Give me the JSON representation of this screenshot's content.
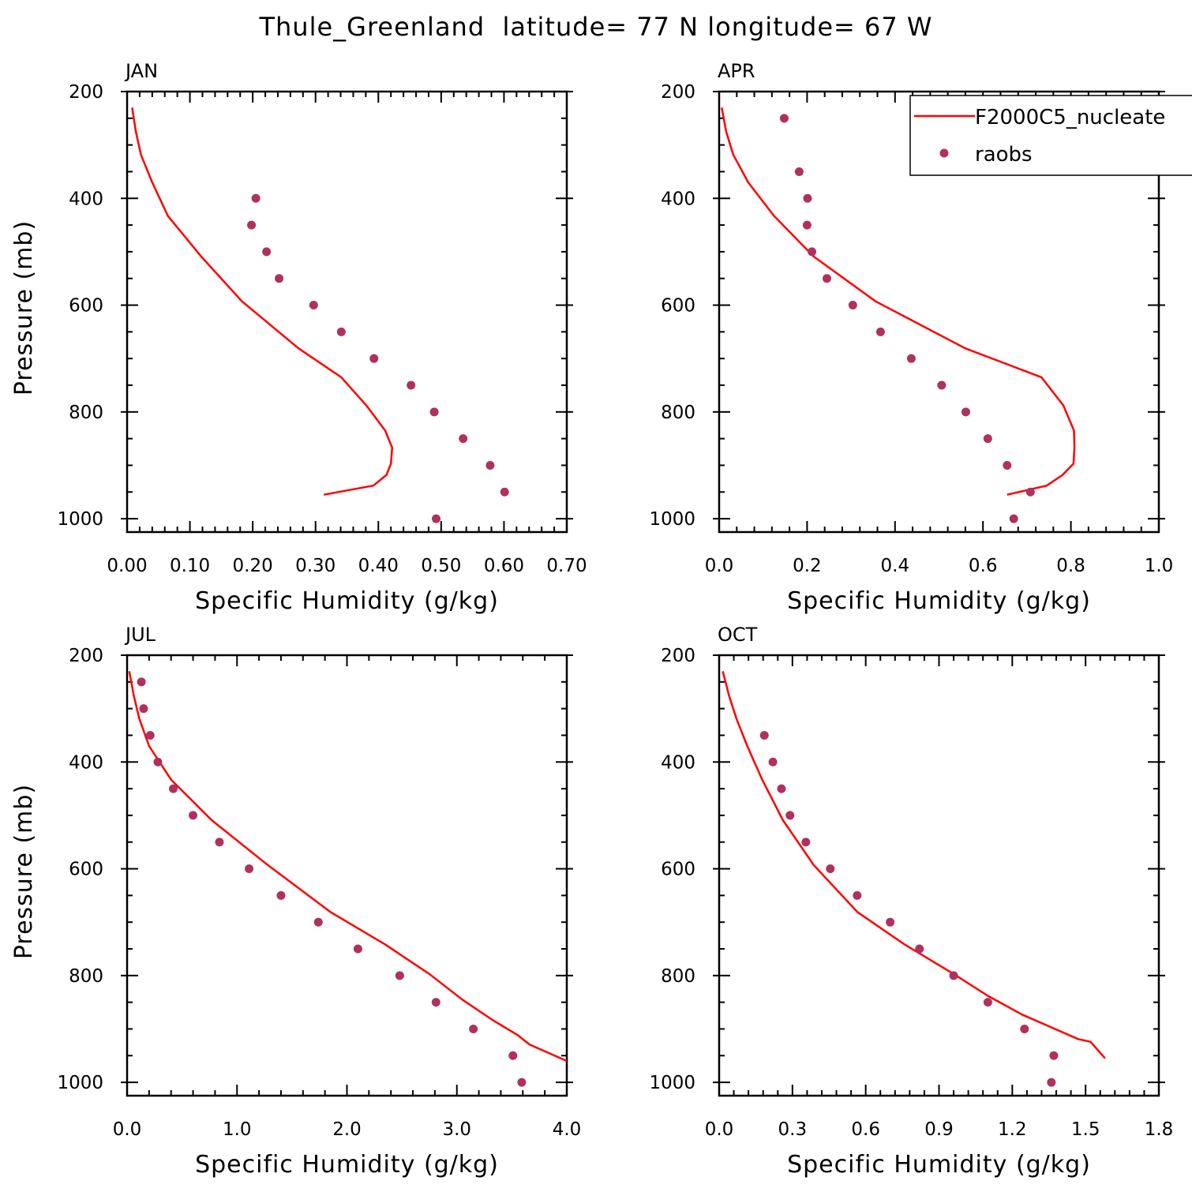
{
  "figure": {
    "title": "Thule_Greenland  latitude= 77 N longitude= 67 W"
  },
  "legend": {
    "model_label": "F2000C5_nucleate",
    "obs_label": "raobs",
    "placement": "top-right of APR panel (clipped at figure edge)"
  },
  "colors": {
    "model_line": "#ff0000",
    "obs_marker": "#b03060",
    "axes": "#000000"
  },
  "chart_data": [
    {
      "type": "line",
      "panel": "JAN",
      "xlabel": "Specific Humidity (g/kg)",
      "ylabel": "Pressure (mb)",
      "xlim": [
        0,
        0.7
      ],
      "xticks": [
        "0.00",
        "0.10",
        "0.20",
        "0.30",
        "0.40",
        "0.50",
        "0.60",
        "0.70"
      ],
      "xtick_values": [
        0,
        0.1,
        0.2,
        0.3,
        0.4,
        0.5,
        0.6,
        0.7
      ],
      "xminor_step": 0.02,
      "ylim": [
        200,
        1025
      ],
      "y_inverted": true,
      "yticks": [
        "200",
        "400",
        "600",
        "800",
        "1000"
      ],
      "ytick_values": [
        200,
        400,
        600,
        800,
        1000
      ],
      "yminor_step": 50,
      "series": [
        {
          "name": "F2000C5_nucleate",
          "style": "line",
          "x": [
            0.008,
            0.014,
            0.022,
            0.04,
            0.065,
            0.118,
            0.183,
            0.273,
            0.341,
            0.381,
            0.411,
            0.422,
            0.42,
            0.413,
            0.392,
            0.313
          ],
          "y": [
            230,
            275,
            318,
            370,
            433,
            509,
            593,
            681,
            735,
            788,
            835,
            867,
            897,
            918,
            938,
            955
          ]
        },
        {
          "name": "raobs",
          "style": "scatter",
          "x": [
            0.205,
            0.198,
            0.222,
            0.242,
            0.297,
            0.341,
            0.393,
            0.452,
            0.489,
            0.535,
            0.578,
            0.601,
            0.492
          ],
          "y": [
            400,
            450,
            500,
            550,
            600,
            650,
            700,
            750,
            800,
            850,
            900,
            950,
            1000
          ]
        }
      ]
    },
    {
      "type": "line",
      "panel": "APR",
      "xlabel": "Specific Humidity (g/kg)",
      "ylabel": "",
      "xlim": [
        0,
        1.0
      ],
      "xticks": [
        "0.0",
        "0.2",
        "0.4",
        "0.6",
        "0.8",
        "1.0"
      ],
      "xtick_values": [
        0,
        0.2,
        0.4,
        0.6,
        0.8,
        1.0
      ],
      "xminor_step": 0.04,
      "ylim": [
        200,
        1025
      ],
      "y_inverted": true,
      "yticks": [
        "200",
        "400",
        "600",
        "800",
        "1000"
      ],
      "ytick_values": [
        200,
        400,
        600,
        800,
        1000
      ],
      "yminor_step": 50,
      "series": [
        {
          "name": "F2000C5_nucleate",
          "style": "line",
          "x": [
            0.006,
            0.016,
            0.032,
            0.066,
            0.125,
            0.215,
            0.356,
            0.56,
            0.733,
            0.783,
            0.807,
            0.808,
            0.806,
            0.781,
            0.745,
            0.655
          ],
          "y": [
            230,
            275,
            318,
            370,
            433,
            509,
            593,
            681,
            735,
            788,
            835,
            867,
            897,
            918,
            938,
            955
          ]
        },
        {
          "name": "raobs",
          "style": "scatter",
          "x": [
            0.148,
            0.182,
            0.201,
            0.2,
            0.211,
            0.245,
            0.304,
            0.367,
            0.437,
            0.506,
            0.561,
            0.611,
            0.655,
            0.708,
            0.67
          ],
          "y": [
            250,
            350,
            400,
            450,
            500,
            550,
            600,
            650,
            700,
            750,
            800,
            850,
            900,
            950,
            1000
          ]
        }
      ]
    },
    {
      "type": "line",
      "panel": "JUL",
      "xlabel": "Specific Humidity (g/kg)",
      "ylabel": "Pressure (mb)",
      "xlim": [
        0,
        4.0
      ],
      "xticks": [
        "0.0",
        "1.0",
        "2.0",
        "3.0",
        "4.0"
      ],
      "xtick_values": [
        0,
        1,
        2,
        3,
        4
      ],
      "xminor_step": 0.2,
      "ylim": [
        200,
        1025
      ],
      "y_inverted": true,
      "yticks": [
        "200",
        "400",
        "600",
        "800",
        "1000"
      ],
      "ytick_values": [
        200,
        400,
        600,
        800,
        1000
      ],
      "yminor_step": 50,
      "series": [
        {
          "name": "F2000C5_nucleate",
          "style": "line",
          "x": [
            0.02,
            0.06,
            0.11,
            0.2,
            0.4,
            0.77,
            1.28,
            1.85,
            2.35,
            2.75,
            3.05,
            3.33,
            3.55,
            3.66,
            3.78,
            4.0
          ],
          "y": [
            230,
            275,
            318,
            370,
            433,
            509,
            593,
            681,
            742,
            797,
            845,
            884,
            911,
            929,
            940,
            960
          ]
        },
        {
          "name": "raobs",
          "style": "scatter",
          "x": [
            0.13,
            0.15,
            0.21,
            0.28,
            0.42,
            0.6,
            0.84,
            1.11,
            1.4,
            1.74,
            2.1,
            2.48,
            2.81,
            3.15,
            3.51,
            3.59
          ],
          "y": [
            250,
            300,
            350,
            400,
            450,
            500,
            550,
            600,
            650,
            700,
            750,
            800,
            850,
            900,
            950,
            1000
          ]
        }
      ]
    },
    {
      "type": "line",
      "panel": "OCT",
      "xlabel": "Specific Humidity (g/kg)",
      "ylabel": "",
      "xlim": [
        0,
        1.8
      ],
      "xticks": [
        "0.0",
        "0.3",
        "0.6",
        "0.9",
        "1.2",
        "1.5",
        "1.8"
      ],
      "xtick_values": [
        0,
        0.3,
        0.6,
        0.9,
        1.2,
        1.5,
        1.8
      ],
      "xminor_step": 0.06,
      "ylim": [
        200,
        1025
      ],
      "y_inverted": true,
      "yticks": [
        "200",
        "400",
        "600",
        "800",
        "1000"
      ],
      "ytick_values": [
        200,
        400,
        600,
        800,
        1000
      ],
      "yminor_step": 50,
      "series": [
        {
          "name": "F2000C5_nucleate",
          "style": "line",
          "x": [
            0.015,
            0.04,
            0.07,
            0.115,
            0.176,
            0.261,
            0.387,
            0.566,
            0.76,
            0.96,
            1.1,
            1.24,
            1.38,
            1.47,
            1.52,
            1.58
          ],
          "y": [
            230,
            275,
            318,
            370,
            433,
            509,
            593,
            681,
            742,
            797,
            838,
            873,
            901,
            919,
            924,
            955
          ]
        },
        {
          "name": "raobs",
          "style": "scatter",
          "x": [
            0.185,
            0.22,
            0.255,
            0.29,
            0.355,
            0.455,
            0.565,
            0.7,
            0.82,
            0.96,
            1.1,
            1.25,
            1.37,
            1.36
          ],
          "y": [
            350,
            400,
            450,
            500,
            550,
            600,
            650,
            700,
            750,
            800,
            850,
            900,
            950,
            1000
          ]
        }
      ]
    }
  ]
}
